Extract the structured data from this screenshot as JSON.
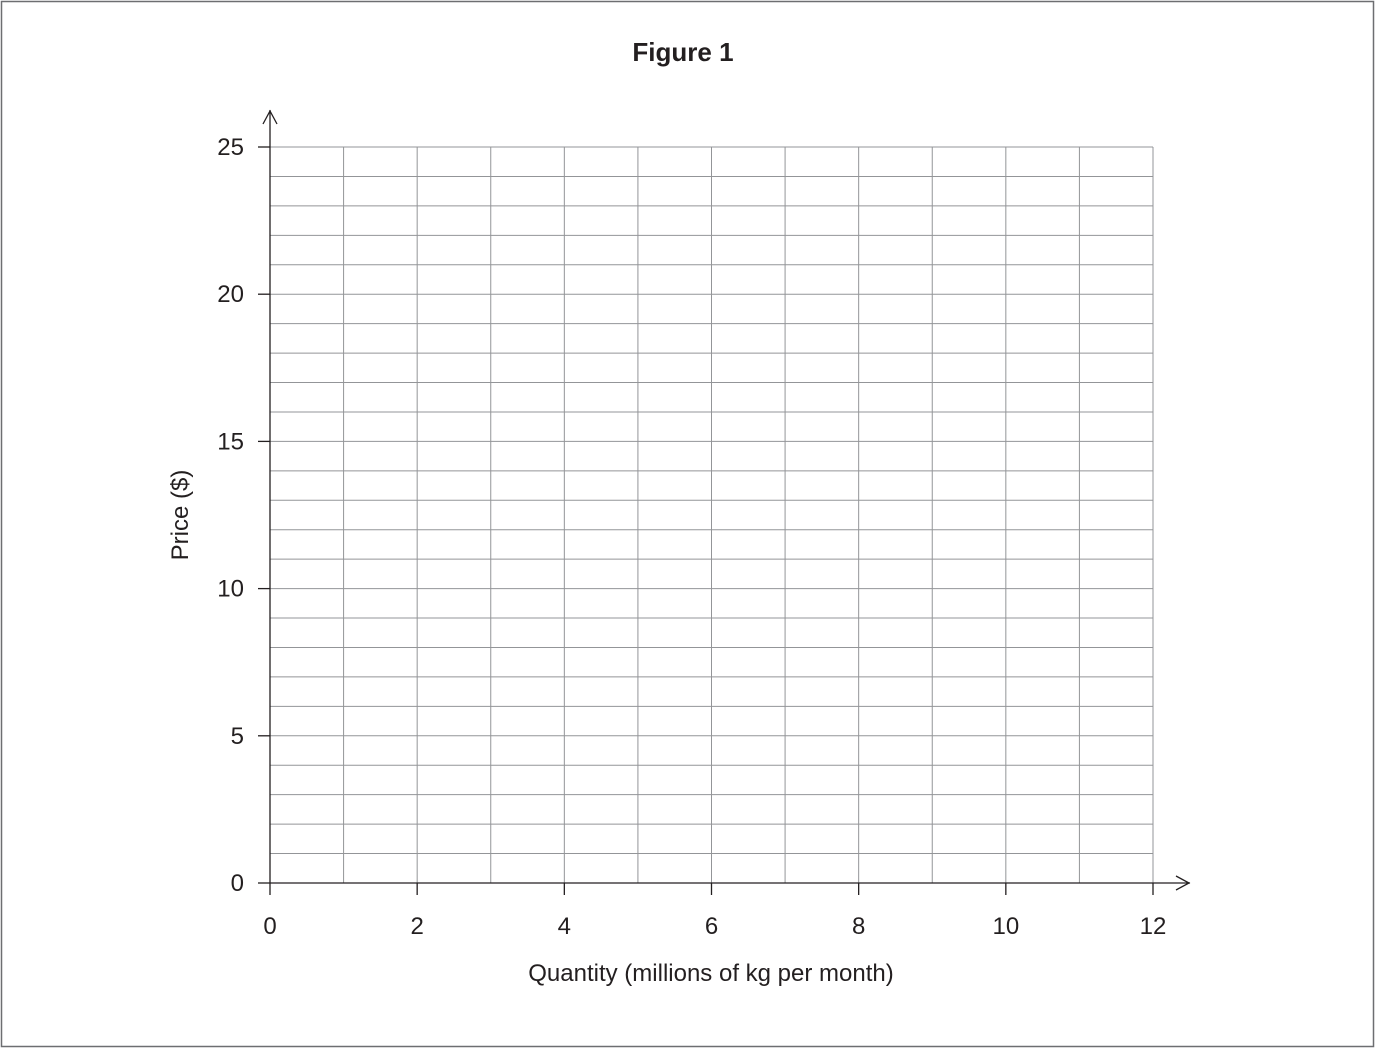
{
  "chart_data": {
    "type": "line",
    "title": "Figure 1",
    "xlabel": "Quantity (millions of kg per month)",
    "ylabel": "Price ($)",
    "xlim": [
      0,
      12
    ],
    "ylim": [
      0,
      25
    ],
    "x_ticks": [
      0,
      2,
      4,
      6,
      8,
      10,
      12
    ],
    "y_ticks": [
      0,
      5,
      10,
      15,
      20,
      25
    ],
    "x_grid_step": 1,
    "y_grid_step": 1,
    "grid": true,
    "series": []
  }
}
